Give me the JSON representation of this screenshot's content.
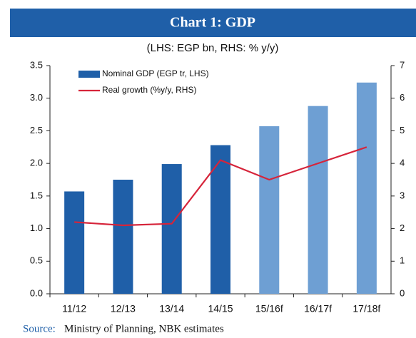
{
  "chart_data": {
    "type": "bar_line",
    "title": "Chart 1: GDP",
    "subtitle": "(LHS: EGP bn, RHS: % y/y)",
    "categories": [
      "11/12",
      "12/13",
      "13/14",
      "14/15",
      "15/16f",
      "16/17f",
      "17/18f"
    ],
    "series": [
      {
        "name": "Nominal GDP (EGP tr, LHS)",
        "color": "#1f5fa8",
        "colors": [
          "#1f5fa8",
          "#1f5fa8",
          "#1f5fa8",
          "#1f5fa8",
          "#6e9fd3",
          "#6e9fd3",
          "#6e9fd3"
        ],
        "values": [
          1.57,
          1.75,
          1.99,
          2.28,
          2.57,
          2.88,
          3.24
        ]
      },
      {
        "name": "Real growth (%y/y, RHS)",
        "color": "#d6243a",
        "axis": "y2",
        "values": [
          2.2,
          2.1,
          2.15,
          4.1,
          3.5,
          4.0,
          4.5
        ]
      }
    ],
    "ylim": [
      0,
      3.5
    ],
    "yticks": [
      {
        "value": 0,
        "label": "0.0"
      },
      0.5,
      {
        "value": 1,
        "label": "1.0"
      },
      1.5,
      {
        "value": 2,
        "label": "2.0"
      },
      2.5,
      {
        "value": 3,
        "label": "3.0"
      },
      3.5
    ],
    "y2lim": [
      0,
      7
    ],
    "y2ticks": [
      0,
      1,
      2,
      3,
      4,
      5,
      6,
      7
    ],
    "source_label": "Source:",
    "source": "Ministry of Planning, NBK estimates"
  }
}
